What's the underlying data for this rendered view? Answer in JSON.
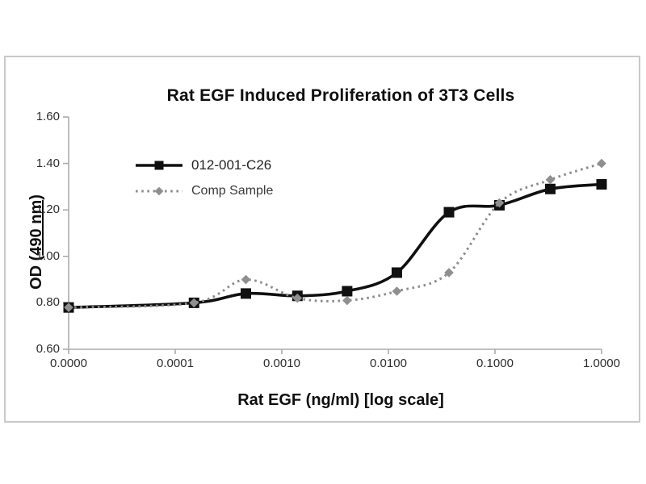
{
  "chart_data": {
    "type": "line",
    "title": "Rat EGF Induced Proliferation of 3T3 Cells",
    "xlabel": "Rat EGF (ng/ml) [log scale]",
    "ylabel": "OD (490 nm)",
    "ylabel_parts": {
      "prefix": "OD (",
      "underlined": "490 nm",
      "suffix": ")"
    },
    "x_scale": "log",
    "x_tick_labels": [
      "0.0000",
      "0.0001",
      "0.0010",
      "0.0100",
      "0.1000",
      "1.0000"
    ],
    "y_tick_labels": [
      "1.60",
      "1.40",
      "1.20",
      "1.00",
      "0.80",
      "0.60"
    ],
    "ylim": [
      0.6,
      1.6
    ],
    "y_tick_step": 0.2,
    "grid": false,
    "legend_position": "top-left-inside",
    "x": [
      0,
      0.00015,
      0.00046,
      0.0014,
      0.0041,
      0.012,
      0.037,
      0.11,
      0.33,
      1.0
    ],
    "series": [
      {
        "name": "012-001-C26",
        "color": "#101010",
        "line_style": "solid",
        "marker": "square",
        "values": [
          0.78,
          0.8,
          0.84,
          0.83,
          0.85,
          0.93,
          1.19,
          1.22,
          1.29,
          1.31
        ]
      },
      {
        "name": "Comp Sample",
        "color": "#8c8c8c",
        "line_style": "dotted",
        "marker": "diamond",
        "values": [
          0.78,
          0.8,
          0.9,
          0.82,
          0.81,
          0.85,
          0.93,
          1.23,
          1.33,
          1.4
        ]
      }
    ],
    "axis_color": "#ababab",
    "tick_text_color": "#2e2e2e"
  }
}
